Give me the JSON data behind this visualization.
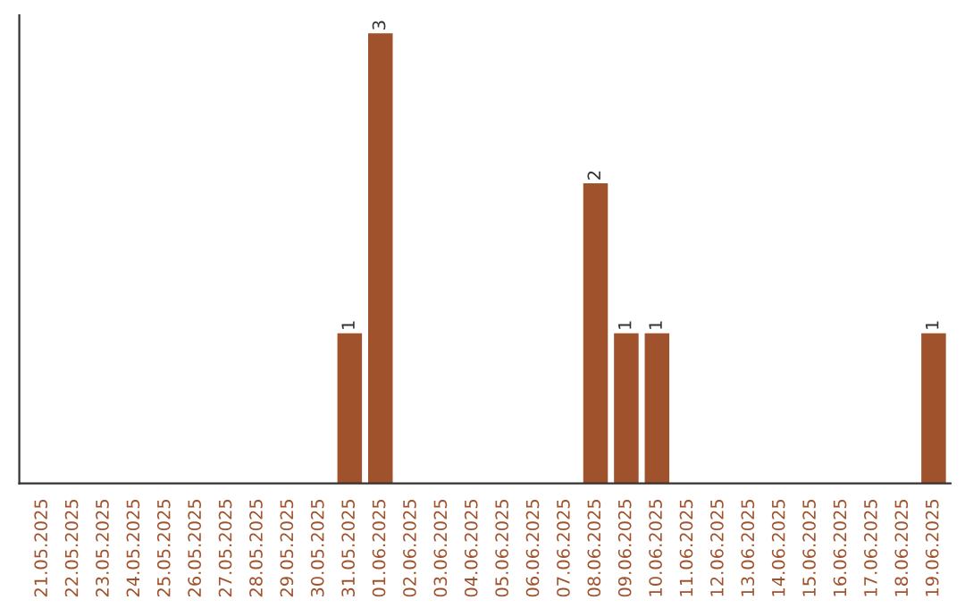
{
  "chart_data": {
    "type": "bar",
    "categories": [
      "21.05.2025",
      "22.05.2025",
      "23.05.2025",
      "24.05.2025",
      "25.05.2025",
      "26.05.2025",
      "27.05.2025",
      "28.05.2025",
      "29.05.2025",
      "30.05.2025",
      "31.05.2025",
      "01.06.2025",
      "02.06.2025",
      "03.06.2025",
      "04.06.2025",
      "05.06.2025",
      "06.06.2025",
      "07.06.2025",
      "08.06.2025",
      "09.06.2025",
      "10.06.2025",
      "11.06.2025",
      "12.06.2025",
      "13.06.2025",
      "14.06.2025",
      "15.06.2025",
      "16.06.2025",
      "17.06.2025",
      "18.06.2025",
      "19.06.2025"
    ],
    "values": [
      0,
      0,
      0,
      0,
      0,
      0,
      0,
      0,
      0,
      0,
      1,
      3,
      0,
      0,
      0,
      0,
      0,
      0,
      2,
      1,
      1,
      0,
      0,
      0,
      0,
      0,
      0,
      0,
      0,
      1
    ],
    "value_labels": [
      null,
      null,
      null,
      null,
      null,
      null,
      null,
      null,
      null,
      null,
      "1",
      "3",
      null,
      null,
      null,
      null,
      null,
      null,
      "2",
      "1",
      "1",
      null,
      null,
      null,
      null,
      null,
      null,
      null,
      null,
      "1"
    ],
    "color": "#a0522d",
    "tick_labels": "x"
  }
}
